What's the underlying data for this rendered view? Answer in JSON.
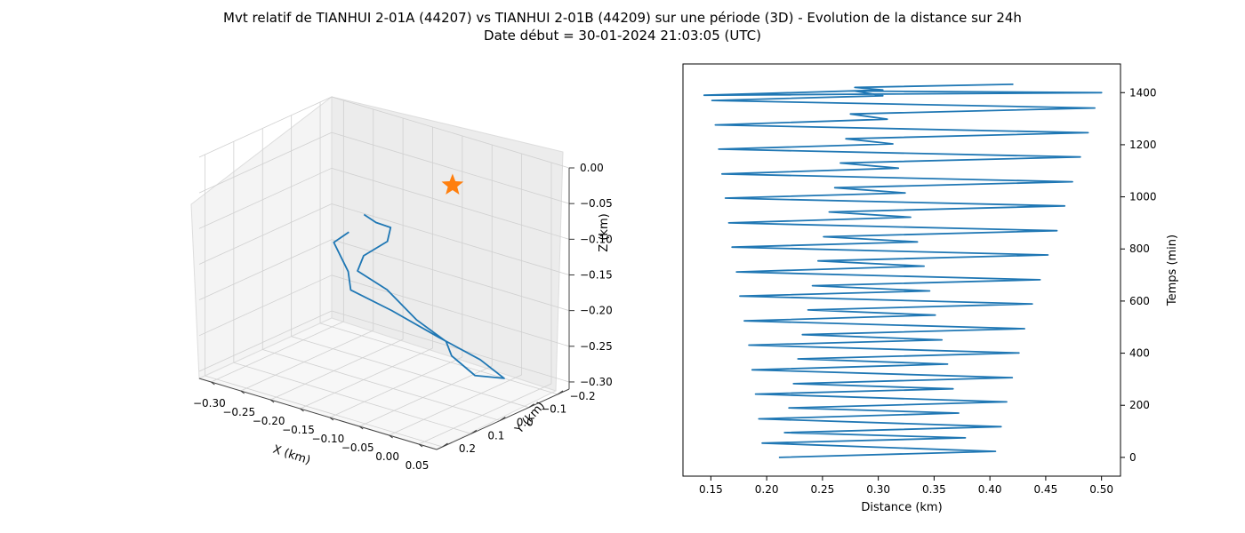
{
  "title": {
    "line1": "Mvt relatif de TIANHUI 2-01A (44207) vs TIANHUI 2-01B (44209) sur une période (3D) - Evolution de la distance sur 24h",
    "line2": "Date début = 30-01-2024 21:03:05 (UTC)"
  },
  "colors": {
    "series": "#1f77b4",
    "marker": "#ff7f0e",
    "pane": "#f2f2f2",
    "grid": "#cccccc"
  },
  "chart_data": [
    {
      "type": "line3d",
      "xlabel": "X (km)",
      "ylabel": "Y (km)",
      "zlabel": "Z (km)",
      "xticks": [
        "−0.30",
        "−0.25",
        "−0.20",
        "−0.15",
        "−0.10",
        "−0.05",
        "0.00",
        "0.05"
      ],
      "yticks": [
        "−0.2",
        "−0.1",
        "0.0",
        "0.1",
        "0.2"
      ],
      "zticks": [
        "0.00",
        "−0.05",
        "−0.10",
        "−0.15",
        "−0.20",
        "−0.25",
        "−0.30"
      ],
      "xlim": [
        -0.32,
        0.08
      ],
      "ylim": [
        -0.24,
        0.22
      ],
      "zlim": [
        -0.31,
        0.0
      ],
      "marker": {
        "symbol": "star",
        "x": 0.0,
        "y": 0.0,
        "z": 0.0
      },
      "series": [
        {
          "x": [
            -0.12,
            -0.09,
            -0.08,
            -0.1,
            -0.14,
            -0.16,
            -0.12,
            -0.07,
            -0.04,
            -0.05,
            -0.03,
            -0.01,
            -0.06,
            -0.12,
            -0.18,
            -0.22,
            -0.2,
            -0.2,
            -0.16
          ],
          "y": [
            0.06,
            0.08,
            0.05,
            0.02,
            0.02,
            0.0,
            -0.02,
            -0.02,
            -0.06,
            -0.1,
            -0.14,
            -0.2,
            -0.22,
            -0.2,
            -0.16,
            -0.1,
            -0.05,
            0.0,
            0.03
          ],
          "z": [
            -0.06,
            -0.06,
            -0.07,
            -0.1,
            -0.13,
            -0.16,
            -0.18,
            -0.21,
            -0.24,
            -0.27,
            -0.3,
            -0.31,
            -0.3,
            -0.28,
            -0.25,
            -0.22,
            -0.18,
            -0.13,
            -0.1
          ]
        }
      ]
    },
    {
      "type": "line",
      "xlabel": "Distance (km)",
      "ylabel": "Temps (min)",
      "xlim": [
        0.125,
        0.517
      ],
      "ylim": [
        -72,
        1510
      ],
      "xticks": [
        "0.15",
        "0.20",
        "0.25",
        "0.30",
        "0.35",
        "0.40",
        "0.45",
        "0.50"
      ],
      "xtick_values": [
        0.15,
        0.2,
        0.25,
        0.3,
        0.35,
        0.4,
        0.45,
        0.5
      ],
      "yticks": [
        "0",
        "200",
        "400",
        "600",
        "800",
        "1000",
        "1200",
        "1400"
      ],
      "ytick_values": [
        0,
        200,
        400,
        600,
        800,
        1000,
        1200,
        1400
      ],
      "series": [
        {
          "x": [
            0.211,
            0.405,
            0.196,
            0.378,
            0.216,
            0.41,
            0.193,
            0.372,
            0.22,
            0.415,
            0.19,
            0.367,
            0.224,
            0.42,
            0.187,
            0.362,
            0.228,
            0.426,
            0.184,
            0.357,
            0.232,
            0.431,
            0.18,
            0.351,
            0.237,
            0.438,
            0.176,
            0.346,
            0.241,
            0.445,
            0.173,
            0.341,
            0.246,
            0.452,
            0.169,
            0.335,
            0.251,
            0.46,
            0.166,
            0.329,
            0.256,
            0.467,
            0.163,
            0.324,
            0.261,
            0.474,
            0.16,
            0.318,
            0.266,
            0.481,
            0.157,
            0.313,
            0.271,
            0.488,
            0.154,
            0.308,
            0.275,
            0.494,
            0.151,
            0.304,
            0.279,
            0.5,
            0.144,
            0.304,
            0.279,
            0.421
          ],
          "y": [
            0,
            23,
            55,
            75,
            95,
            118,
            148,
            170,
            190,
            213,
            243,
            263,
            283,
            306,
            336,
            358,
            378,
            401,
            431,
            451,
            471,
            494,
            524,
            546,
            566,
            589,
            619,
            639,
            659,
            682,
            712,
            734,
            754,
            777,
            807,
            827,
            847,
            870,
            900,
            922,
            942,
            965,
            995,
            1015,
            1035,
            1058,
            1088,
            1110,
            1130,
            1153,
            1183,
            1203,
            1223,
            1246,
            1276,
            1298,
            1318,
            1341,
            1370,
            1388,
            1406,
            1400,
            1390,
            1410,
            1420,
            1432
          ]
        }
      ]
    }
  ]
}
